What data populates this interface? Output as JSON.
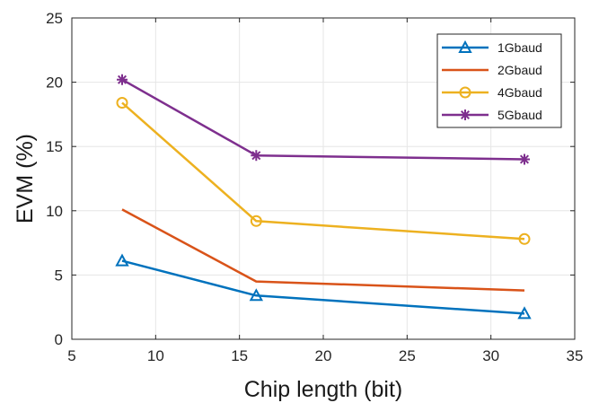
{
  "chart_data": {
    "type": "line",
    "xlabel": "Chip length (bit)",
    "ylabel": "EVM (%)",
    "xlim": [
      5,
      35
    ],
    "ylim": [
      0,
      25
    ],
    "x_ticks": [
      "5",
      "10",
      "15",
      "20",
      "25",
      "30",
      "35"
    ],
    "y_ticks": [
      "0",
      "5",
      "10",
      "15",
      "20",
      "25"
    ],
    "grid": true,
    "legend_position": "top-right",
    "x": [
      8,
      16,
      32
    ],
    "series": [
      {
        "name": "1Gbaud",
        "color": "#0072BD",
        "marker": "triangle",
        "values": [
          6.1,
          3.4,
          2.0
        ]
      },
      {
        "name": "2Gbaud",
        "color": "#D95319",
        "marker": "none",
        "values": [
          10.1,
          4.5,
          3.8
        ]
      },
      {
        "name": "4Gbaud",
        "color": "#EDB120",
        "marker": "circle",
        "values": [
          18.4,
          9.2,
          7.8
        ]
      },
      {
        "name": "5Gbaud",
        "color": "#7E2F8E",
        "marker": "asterisk",
        "values": [
          20.2,
          14.3,
          14.0
        ]
      }
    ]
  }
}
